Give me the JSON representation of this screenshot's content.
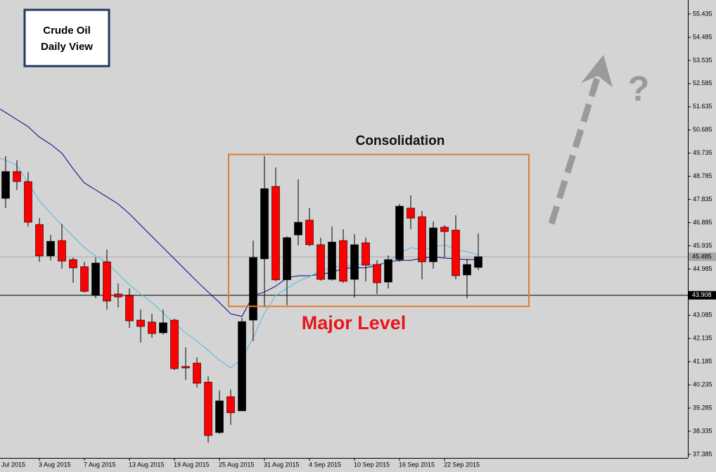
{
  "chart_data": {
    "type": "candlestick",
    "categories": [
      "Jul 2015",
      null,
      null,
      null,
      "3 Aug 2015",
      null,
      null,
      null,
      "7 Aug 2015",
      null,
      null,
      null,
      "13 Aug 2015",
      null,
      null,
      null,
      "19 Aug 2015",
      null,
      null,
      null,
      "25 Aug 2015",
      null,
      null,
      null,
      "31 Aug 2015",
      null,
      null,
      null,
      "4 Sep 2015",
      null,
      null,
      null,
      "10 Sep 2015",
      null,
      null,
      null,
      "16 Sep 2015",
      null,
      null,
      null,
      "22 Sep 2015",
      null,
      null,
      null
    ],
    "open": [
      null,
      47.88,
      48.98,
      48.57,
      46.81,
      45.52,
      46.15,
      45.37,
      45.08,
      43.9,
      45.28,
      43.96,
      43.9,
      42.89,
      42.81,
      42.37,
      42.89,
      40.99,
      41.13,
      40.35,
      38.28,
      39.75,
      39.17,
      42.89,
      45.4,
      48.37,
      44.54,
      46.38,
      46.99,
      45.98,
      44.56,
      46.15,
      44.56,
      46.06,
      45.17,
      44.45,
      45.37,
      47.48,
      47.13,
      45.28,
      46.7,
      46.58,
      44.74,
      45.05
    ],
    "high": [
      null,
      49.61,
      49.44,
      48.95,
      47.07,
      46.38,
      46.84,
      45.46,
      45.28,
      45.46,
      45.78,
      44.39,
      44.19,
      43.32,
      43.15,
      43.32,
      42.95,
      41.77,
      41.36,
      40.58,
      40.01,
      40.04,
      42.98,
      46.15,
      49.61,
      49.15,
      46.32,
      48.66,
      47.48,
      46.27,
      46.73,
      46.61,
      46.41,
      46.27,
      45.34,
      45.54,
      47.65,
      48.0,
      47.36,
      46.93,
      46.78,
      47.19,
      45.4,
      46.44
    ],
    "low": [
      null,
      47.48,
      48.23,
      46.73,
      45.28,
      45.34,
      45.0,
      44.42,
      44.02,
      43.79,
      43.32,
      43.41,
      42.57,
      41.97,
      42.17,
      42.29,
      40.84,
      40.44,
      40.12,
      37.87,
      38.22,
      38.6,
      39.17,
      42.03,
      43.41,
      44.48,
      43.5,
      45.95,
      45.92,
      44.51,
      44.51,
      44.42,
      43.81,
      44.48,
      43.96,
      44.19,
      45.28,
      46.61,
      44.56,
      45.0,
      45.46,
      44.56,
      43.79,
      44.94
    ],
    "close": [
      null,
      48.98,
      48.57,
      46.9,
      45.52,
      46.12,
      45.31,
      45.03,
      44.07,
      45.23,
      43.67,
      43.84,
      42.86,
      42.63,
      42.34,
      42.78,
      40.9,
      40.93,
      40.3,
      38.16,
      39.58,
      39.09,
      42.83,
      45.46,
      48.28,
      44.54,
      46.27,
      46.9,
      45.98,
      44.56,
      46.09,
      44.48,
      45.98,
      45.14,
      44.42,
      45.37,
      47.56,
      47.07,
      45.28,
      46.67,
      46.52,
      44.71,
      45.17,
      45.49
    ],
    "up_color": "#000000",
    "down_color": "#ff0000",
    "lines": [
      {
        "color": "#00008b",
        "values": [
          51.69,
          51.4,
          51.11,
          50.82,
          50.39,
          50.1,
          49.73,
          49.09,
          48.51,
          48.23,
          47.94,
          47.65,
          47.25,
          46.78,
          46.32,
          45.86,
          45.4,
          44.94,
          44.48,
          44.04,
          43.61,
          43.15,
          43.04,
          43.9,
          44.04,
          44.28,
          44.62,
          44.71,
          44.71,
          44.77,
          44.85,
          45.0,
          45.05,
          45.03,
          45.14,
          45.28,
          45.34,
          45.34,
          45.43,
          45.49,
          45.43,
          45.4,
          45.37,
          45.37
        ]
      },
      {
        "color": "#4fb8e8",
        "values": [
          49.61,
          49.44,
          49.24,
          48.51,
          47.79,
          47.27,
          46.78,
          46.32,
          45.86,
          45.52,
          45.26,
          44.79,
          44.33,
          43.96,
          43.61,
          43.18,
          42.75,
          42.37,
          42.03,
          41.65,
          41.25,
          40.93,
          41.31,
          42.17,
          43.18,
          43.9,
          44.19,
          44.48,
          44.68,
          44.91,
          45.05,
          45.11,
          45.14,
          45.2,
          45.11,
          45.28,
          45.63,
          45.86,
          45.78,
          45.86,
          45.98,
          45.78,
          45.69,
          45.57
        ]
      }
    ],
    "hlines": [
      {
        "value": 43.908,
        "color": "#000000"
      },
      {
        "value": 45.485,
        "color": "#a8a8a8"
      }
    ],
    "ylim": [
      37.269,
      56.012
    ],
    "yticks": [
      55.435,
      54.485,
      53.535,
      52.585,
      51.635,
      50.685,
      49.735,
      48.785,
      47.835,
      46.885,
      45.935,
      44.985,
      43.085,
      42.135,
      41.185,
      40.235,
      39.285,
      38.335,
      37.385
    ],
    "annotations": {
      "box_title": [
        "Crude Oil",
        "Daily View"
      ],
      "consolidation": "Consolidation",
      "major_level": "Major Level",
      "question": "?"
    }
  }
}
